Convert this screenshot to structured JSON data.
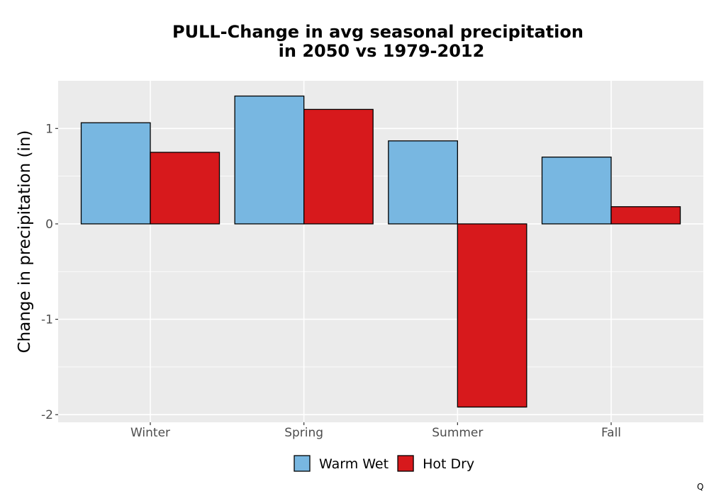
{
  "chart_data": {
    "type": "bar",
    "title_lines": [
      "PULL-Change in avg seasonal precipitation",
      "in 2050 vs 1979-2012"
    ],
    "xlabel": "",
    "ylabel": "Change in precipitation (in)",
    "categories": [
      "Winter",
      "Spring",
      "Summer",
      "Fall"
    ],
    "series": [
      {
        "name": "Warm Wet",
        "color": "#78b7e1",
        "values": [
          1.06,
          1.34,
          0.87,
          0.7
        ]
      },
      {
        "name": "Hot Dry",
        "color": "#d7191c",
        "values": [
          0.75,
          1.2,
          -1.92,
          0.18
        ]
      }
    ],
    "ylim": [
      -2.08,
      1.5
    ],
    "yticks": [
      -2,
      -1,
      0,
      1
    ],
    "ytick_labels": [
      "-2",
      "-1",
      "0",
      "1"
    ],
    "grid": true,
    "panel_background": "#ebebeb",
    "legend_position": "bottom",
    "footnote": "Q"
  }
}
